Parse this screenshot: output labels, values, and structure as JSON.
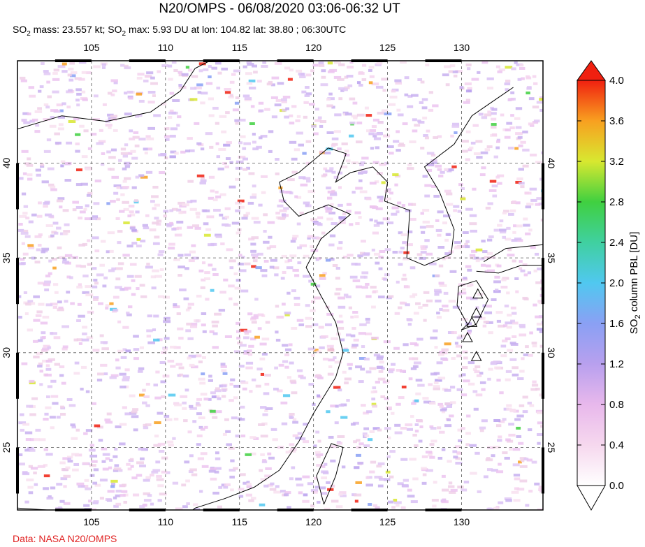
{
  "header": {
    "title": "N20/OMPS - 06/08/2020 03:06-06:32 UT",
    "subtitle": [
      "SO",
      "2",
      " mass: 23.557 kt; SO",
      "2",
      " max: 5.93 DU at lon: 104.82 lat: 38.80 ; 06:30UTC"
    ]
  },
  "map": {
    "lonlim": [
      100,
      135.5
    ],
    "latlim": [
      21.7,
      45.4
    ],
    "lonticks": [
      105,
      110,
      115,
      120,
      125,
      130
    ],
    "latticks": [
      25,
      30,
      35,
      40
    ]
  },
  "colorbar": {
    "label": [
      "SO",
      "2",
      " column PBL [DU]"
    ],
    "lim": [
      0,
      4
    ],
    "ticks": [
      {
        "value": 0,
        "label": "0.0"
      },
      {
        "value": 0.4,
        "label": "0.4"
      },
      {
        "value": 0.8,
        "label": "0.8"
      },
      {
        "value": 1.2,
        "label": "1.2"
      },
      {
        "value": 1.6,
        "label": "1.6"
      },
      {
        "value": 2,
        "label": "2.0"
      },
      {
        "value": 2.4,
        "label": "2.4"
      },
      {
        "value": 2.8,
        "label": "2.8"
      },
      {
        "value": 3.2,
        "label": "3.2"
      },
      {
        "value": 3.6,
        "label": "3.6"
      },
      {
        "value": 4,
        "label": "4.0"
      }
    ]
  },
  "footer": "Data: NASA N20/OMPS"
}
